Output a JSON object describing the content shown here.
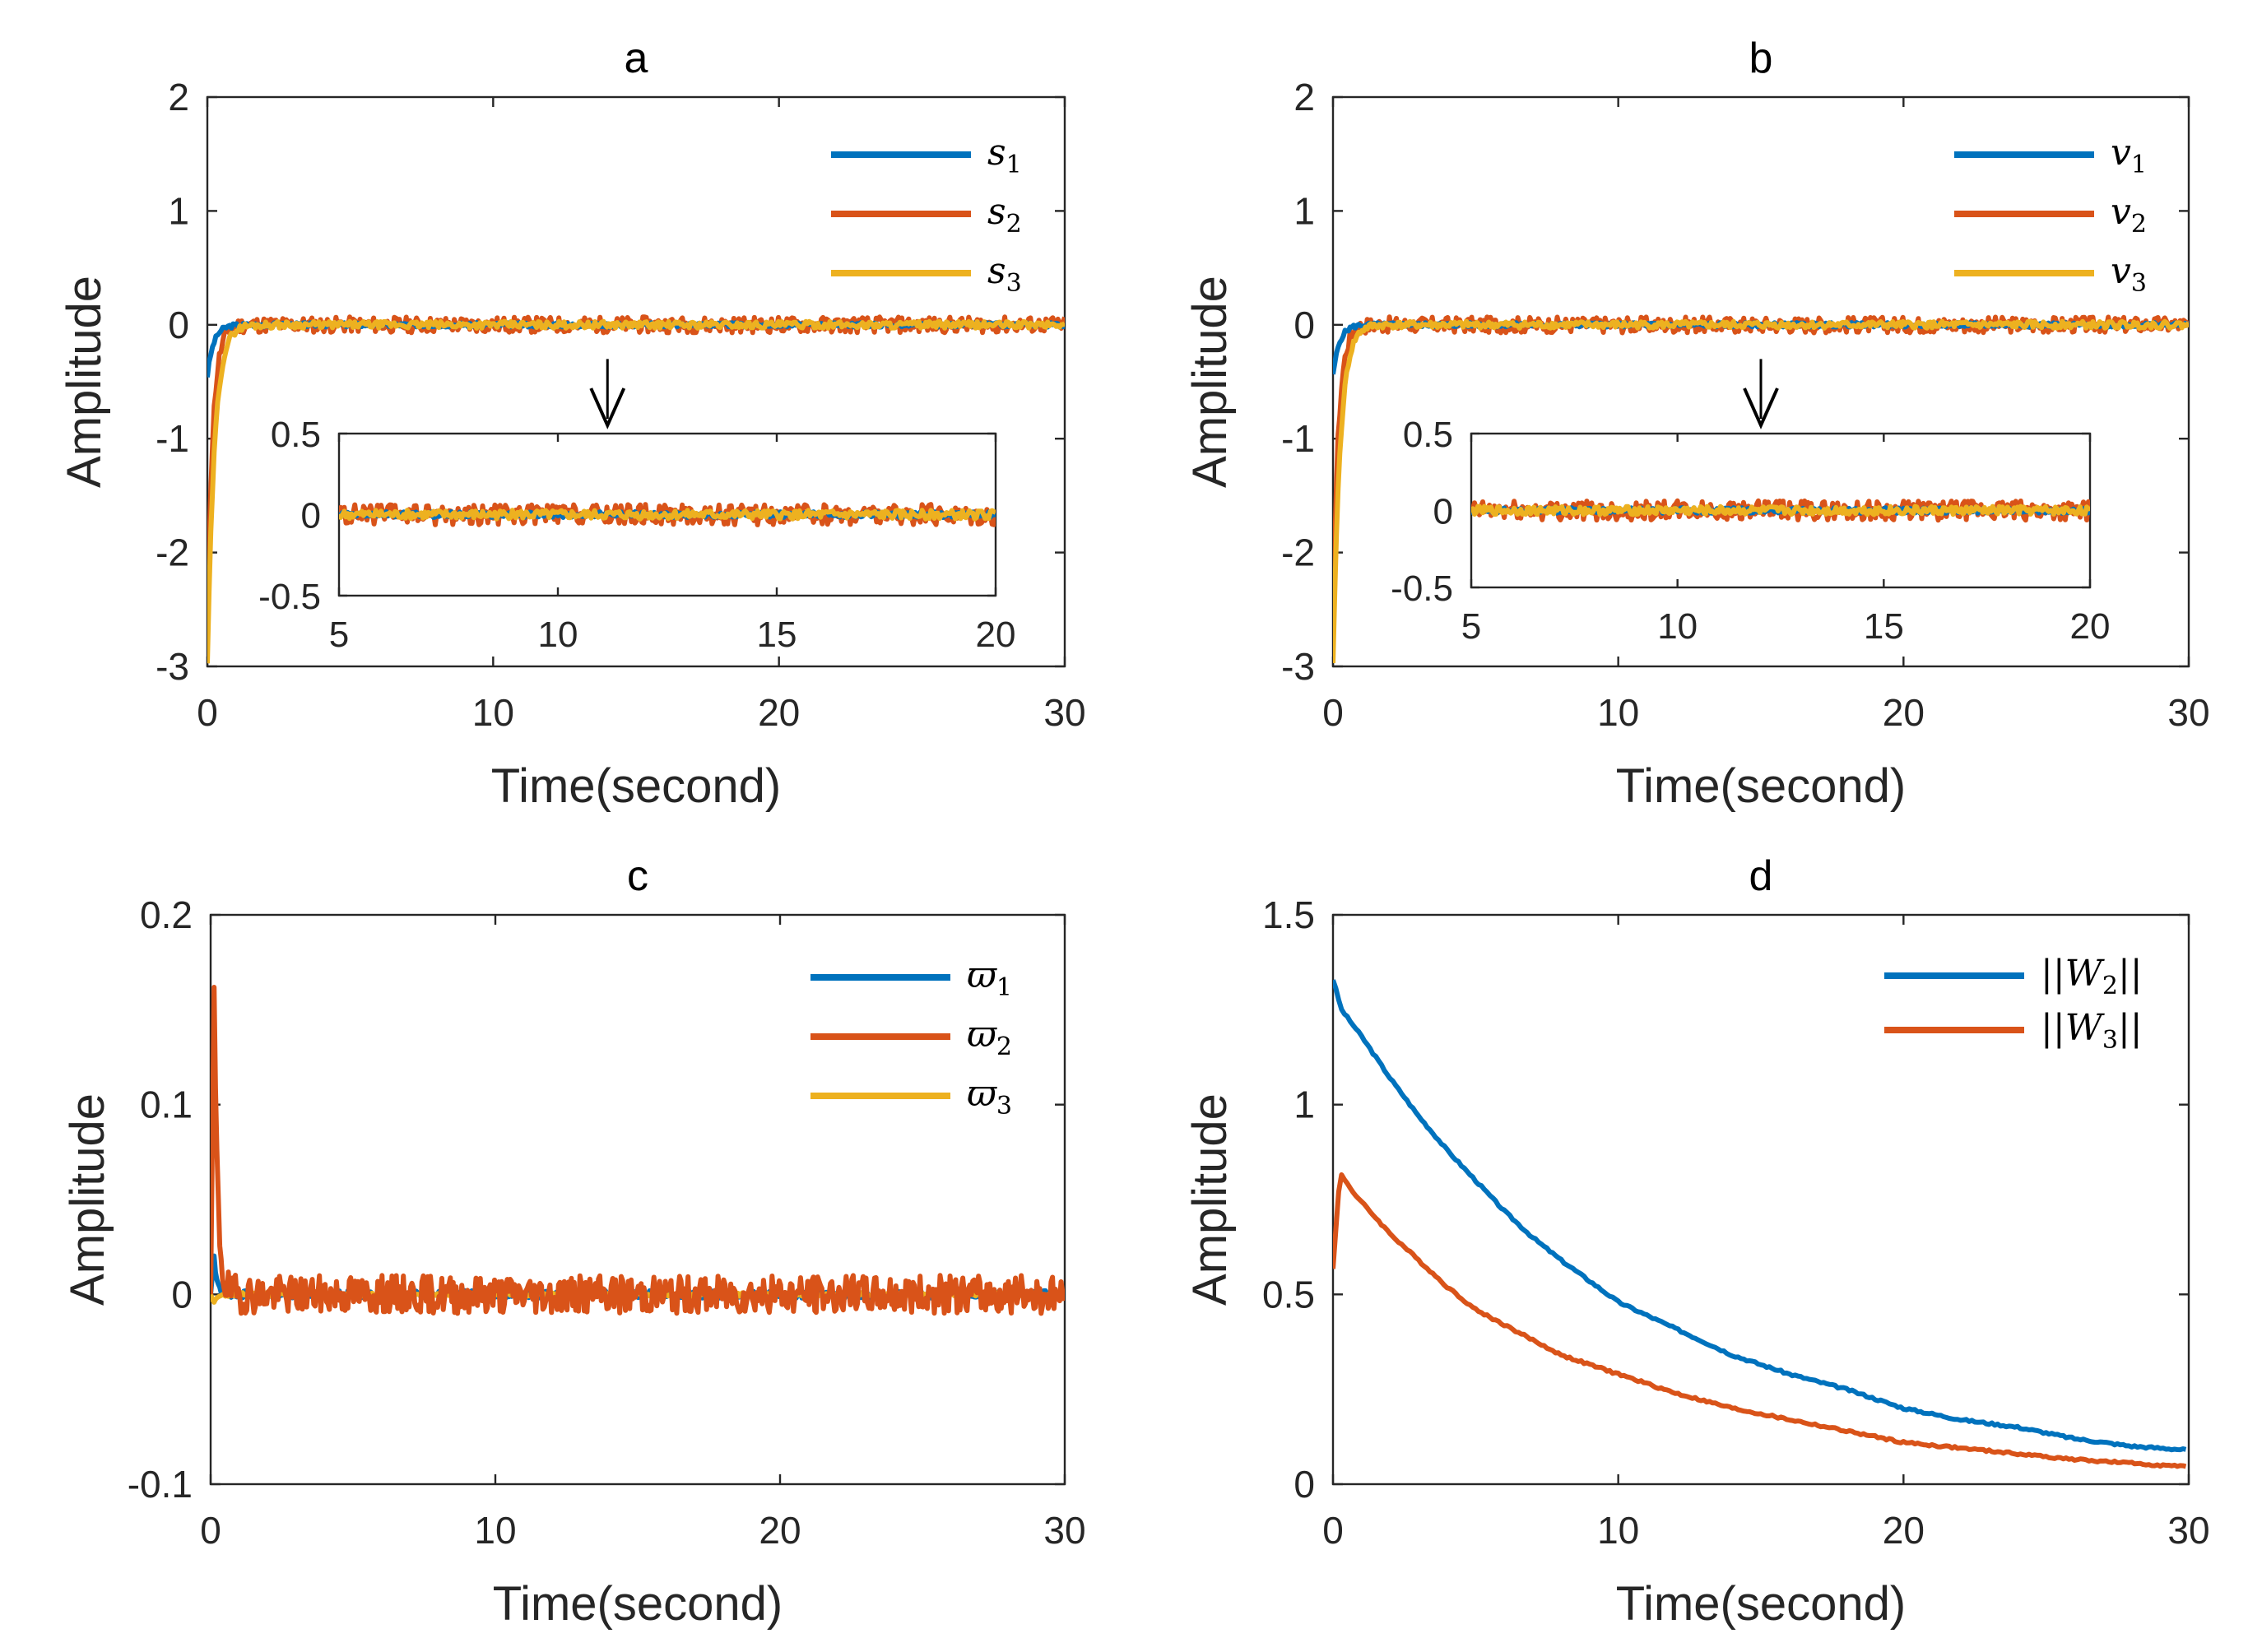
{
  "colors": {
    "series1": "#0072BD",
    "series2": "#D95319",
    "series3": "#EDB120",
    "axis": "#262626"
  },
  "chart_data": [
    {
      "id": "a",
      "type": "line",
      "title": "a",
      "xlabel": "Time(second)",
      "ylabel": "Amplitude",
      "xlim": [
        0,
        30
      ],
      "ylim": [
        -3,
        2
      ],
      "xticks": [
        0,
        10,
        20,
        30
      ],
      "xtick_labels": [
        "0",
        "10",
        "20",
        "30"
      ],
      "yticks": [
        -3,
        -2,
        -1,
        0,
        1,
        2
      ],
      "ytick_labels": [
        "-3",
        "-2",
        "-1",
        "0",
        "1",
        "2"
      ],
      "legend": [
        {
          "base": "s",
          "sub": "1"
        },
        {
          "base": "s",
          "sub": "2"
        },
        {
          "base": "s",
          "sub": "3"
        }
      ],
      "series": [
        {
          "name": "s1",
          "start": -0.45,
          "settle": 0.4,
          "noise": 0.02,
          "seed": 3
        },
        {
          "name": "s2",
          "start": -2.6,
          "settle": 0.35,
          "noise": 0.07,
          "seed": 11
        },
        {
          "name": "s3",
          "start": -3.0,
          "settle": 0.45,
          "noise": 0.03,
          "seed": 29
        }
      ],
      "inset": {
        "xlim": [
          5,
          20
        ],
        "ylim": [
          -0.5,
          0.5
        ],
        "xticks": [
          5,
          10,
          15,
          20
        ],
        "xtick_labels": [
          "5",
          "10",
          "15",
          "20"
        ],
        "yticks": [
          -0.5,
          0,
          0.5
        ],
        "ytick_labels": [
          "-0.5",
          "0",
          "0.5"
        ],
        "arrow_x": 14
      }
    },
    {
      "id": "b",
      "type": "line",
      "title": "b",
      "xlabel": "Time(second)",
      "ylabel": "Amplitude",
      "xlim": [
        0,
        30
      ],
      "ylim": [
        -3,
        2
      ],
      "xticks": [
        0,
        10,
        20,
        30
      ],
      "xtick_labels": [
        "0",
        "10",
        "20",
        "30"
      ],
      "yticks": [
        -3,
        -2,
        -1,
        0,
        1,
        2
      ],
      "ytick_labels": [
        "-3",
        "-2",
        "-1",
        "0",
        "1",
        "2"
      ],
      "legend": [
        {
          "base": "v",
          "sub": "1"
        },
        {
          "base": "v",
          "sub": "2"
        },
        {
          "base": "v",
          "sub": "3"
        }
      ],
      "series": [
        {
          "name": "v1",
          "start": -0.45,
          "settle": 0.4,
          "noise": 0.02,
          "seed": 5
        },
        {
          "name": "v2",
          "start": -2.6,
          "settle": 0.35,
          "noise": 0.07,
          "seed": 17
        },
        {
          "name": "v3",
          "start": -3.0,
          "settle": 0.45,
          "noise": 0.03,
          "seed": 41
        }
      ],
      "inset": {
        "xlim": [
          5,
          20
        ],
        "ylim": [
          -0.5,
          0.5
        ],
        "xticks": [
          5,
          10,
          15,
          20
        ],
        "xtick_labels": [
          "5",
          "10",
          "15",
          "20"
        ],
        "yticks": [
          -0.5,
          0,
          0.5
        ],
        "ytick_labels": [
          "-0.5",
          "0",
          "0.5"
        ],
        "arrow_x": 15
      }
    },
    {
      "id": "c",
      "type": "line",
      "title": "c",
      "xlabel": "Time(second)",
      "ylabel": "Amplitude",
      "xlim": [
        0,
        30
      ],
      "ylim": [
        -0.1,
        0.2
      ],
      "xticks": [
        0,
        10,
        20,
        30
      ],
      "xtick_labels": [
        "0",
        "10",
        "20",
        "30"
      ],
      "yticks": [
        -0.1,
        0,
        0.1,
        0.2
      ],
      "ytick_labels": [
        "-0.1",
        "0",
        "0.1",
        "0.2"
      ],
      "legend": [
        {
          "base": "ϖ",
          "sub": "1"
        },
        {
          "base": "ϖ",
          "sub": "2"
        },
        {
          "base": "ϖ",
          "sub": "3"
        }
      ],
      "series": [
        {
          "name": "w1",
          "peak": 0.02,
          "noise": 0.002,
          "seed": 7
        },
        {
          "name": "w2",
          "peak": 0.16,
          "noise": 0.01,
          "seed": 19
        },
        {
          "name": "w3",
          "peak": -0.005,
          "noise": 0.001,
          "seed": 23
        }
      ]
    },
    {
      "id": "d",
      "type": "line",
      "title": "d",
      "xlabel": "Time(second)",
      "ylabel": "Amplitude",
      "xlim": [
        0,
        30
      ],
      "ylim": [
        0,
        1.5
      ],
      "xticks": [
        0,
        10,
        20,
        30
      ],
      "xtick_labels": [
        "0",
        "10",
        "20",
        "30"
      ],
      "yticks": [
        0,
        0.5,
        1,
        1.5
      ],
      "ytick_labels": [
        "0",
        "0.5",
        "1",
        "1.5"
      ],
      "legend": [
        {
          "base": "||W",
          "sub": "2",
          "tail": "||"
        },
        {
          "base": "||W",
          "sub": "3",
          "tail": "||"
        }
      ],
      "series": [
        {
          "name": "||W2||",
          "x": [
            0,
            0.3,
            1,
            2,
            3,
            4,
            5,
            6,
            7,
            8,
            10,
            12,
            14,
            16,
            18,
            20,
            22,
            24,
            26,
            28,
            30
          ],
          "y": [
            1.33,
            1.25,
            1.18,
            1.07,
            0.97,
            0.88,
            0.8,
            0.72,
            0.65,
            0.59,
            0.48,
            0.41,
            0.34,
            0.29,
            0.25,
            0.2,
            0.17,
            0.15,
            0.12,
            0.1,
            0.09
          ]
        },
        {
          "name": "||W3||",
          "x": [
            0,
            0.25,
            0.8,
            2,
            3,
            4,
            5,
            6,
            7,
            8,
            10,
            12,
            14,
            16,
            18,
            20,
            22,
            24,
            26,
            28,
            30
          ],
          "y": [
            0.57,
            0.82,
            0.76,
            0.66,
            0.59,
            0.52,
            0.46,
            0.42,
            0.38,
            0.34,
            0.29,
            0.24,
            0.2,
            0.17,
            0.14,
            0.11,
            0.095,
            0.08,
            0.065,
            0.055,
            0.045
          ]
        }
      ]
    }
  ]
}
